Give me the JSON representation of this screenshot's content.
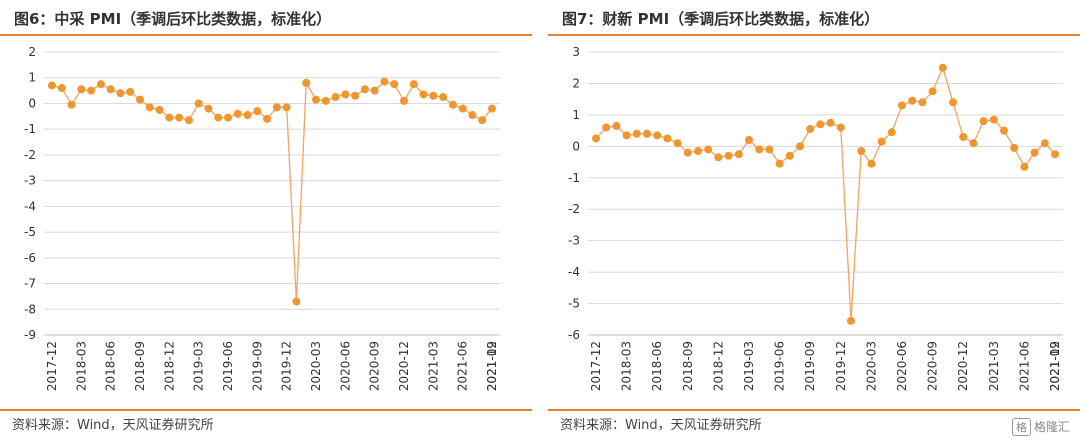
{
  "chart_data": [
    {
      "type": "line",
      "title": "图6：中采 PMI（季调后环比类数据，标准化）",
      "source": "资料来源：Wind，天风证券研究所",
      "ylim": [
        -9,
        2
      ],
      "yticks": [
        "2",
        "1",
        "0",
        "-1",
        "-2",
        "-3",
        "-4",
        "-5",
        "-6",
        "-7",
        "-8",
        "-9"
      ],
      "grid": true,
      "line_color": "#f4a460",
      "marker_color": "#f0962e",
      "x_labels": [
        "2017-12",
        "2018-03",
        "2018-06",
        "2018-09",
        "2018-12",
        "2019-03",
        "2019-06",
        "2019-09",
        "2019-12",
        "2020-03",
        "2020-06",
        "2020-09",
        "2020-12",
        "2021-03",
        "2021-06",
        "2021-09",
        "2021-12"
      ],
      "series": [
        {
          "values": [
            0.7,
            0.6,
            -0.05,
            0.55,
            0.5,
            0.75,
            0.55,
            0.4,
            0.45,
            0.15,
            -0.15,
            -0.25,
            -0.55,
            -0.55,
            -0.65,
            0.0,
            -0.2,
            -0.55,
            -0.55,
            -0.4,
            -0.45,
            -0.3,
            -0.6,
            -0.15,
            -0.15,
            -7.7,
            0.8,
            0.15,
            0.1,
            0.25,
            0.35,
            0.3,
            0.55,
            0.5,
            0.85,
            0.75,
            0.1,
            0.75,
            0.35,
            0.3,
            0.25,
            -0.05,
            -0.2,
            -0.45,
            -0.65,
            -0.2
          ]
        }
      ]
    },
    {
      "type": "line",
      "title": "图7：财新 PMI（季调后环比类数据，标准化）",
      "source": "资料来源：Wind，天风证券研究所",
      "ylim": [
        -6,
        3
      ],
      "yticks": [
        "3",
        "2",
        "1",
        "0",
        "-1",
        "-2",
        "-3",
        "-4",
        "-5",
        "-6"
      ],
      "grid": true,
      "line_color": "#f4a460",
      "marker_color": "#f0962e",
      "x_labels": [
        "2017-12",
        "2018-03",
        "2018-06",
        "2018-09",
        "2018-12",
        "2019-03",
        "2019-06",
        "2019-09",
        "2019-12",
        "2020-03",
        "2020-06",
        "2020-09",
        "2020-12",
        "2021-03",
        "2021-06",
        "2021-09",
        "2021-12"
      ],
      "series": [
        {
          "values": [
            0.25,
            0.6,
            0.65,
            0.35,
            0.4,
            0.4,
            0.35,
            0.25,
            0.1,
            -0.2,
            -0.15,
            -0.1,
            -0.35,
            -0.3,
            -0.25,
            0.2,
            -0.1,
            -0.1,
            -0.55,
            -0.3,
            0.0,
            0.55,
            0.7,
            0.75,
            0.6,
            -5.55,
            -0.15,
            -0.55,
            0.15,
            0.45,
            1.3,
            1.45,
            1.4,
            1.75,
            2.5,
            1.4,
            0.3,
            0.1,
            0.8,
            0.85,
            0.5,
            -0.05,
            -0.65,
            -0.2,
            0.1,
            -0.25
          ]
        }
      ]
    }
  ],
  "watermark": {
    "mark": "格",
    "text": "格隆汇"
  }
}
